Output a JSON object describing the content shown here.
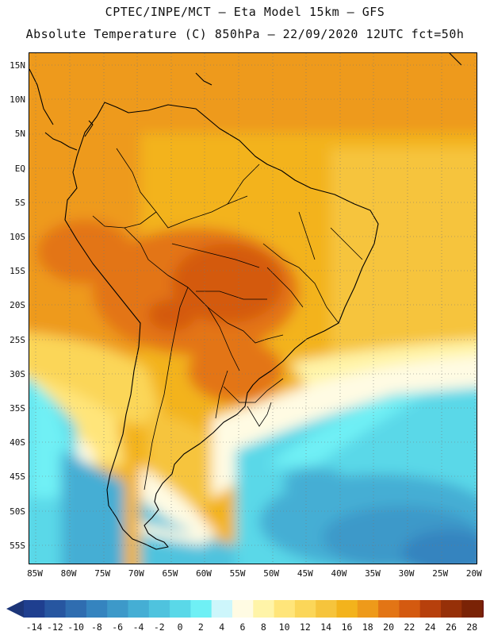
{
  "header": {
    "line1": "CPTEC/INPE/MCT –  Eta Model 15km – GFS",
    "line2": "Absolute Temperature (C) 850hPa – 22/09/2020 12UTC fct=50h"
  },
  "map": {
    "lat_labels": [
      "15N",
      "10N",
      "5N",
      "EQ",
      "5S",
      "10S",
      "15S",
      "20S",
      "25S",
      "30S",
      "35S",
      "40S",
      "45S",
      "50S",
      "55S"
    ],
    "lon_labels": [
      "85W",
      "80W",
      "75W",
      "70W",
      "65W",
      "60W",
      "55W",
      "50W",
      "45W",
      "40W",
      "35W",
      "30W",
      "25W",
      "20W"
    ],
    "field": "Absolute Temperature (C)",
    "level": "850hPa"
  },
  "legend": {
    "labels": [
      "-14",
      "-12",
      "-10",
      "-8",
      "-6",
      "-4",
      "-2",
      "0",
      "2",
      "4",
      "6",
      "8",
      "10",
      "12",
      "14",
      "16",
      "18",
      "20",
      "22",
      "24",
      "26",
      "28"
    ],
    "colors": [
      "#1f3f8f",
      "#2756a0",
      "#2f6db0",
      "#3584bf",
      "#3d99c9",
      "#45aed4",
      "#4fc3de",
      "#5ad8e8",
      "#6ff0f5",
      "#cdf6fb",
      "#fffbe3",
      "#fff4a8",
      "#ffe57a",
      "#fbd659",
      "#f6c43c",
      "#f3b31c",
      "#ee9a1a",
      "#e37515",
      "#d45a10",
      "#b7400c",
      "#963008",
      "#7a2306"
    ],
    "min_color": "#1c3578",
    "max_color": "#6a1414"
  }
}
